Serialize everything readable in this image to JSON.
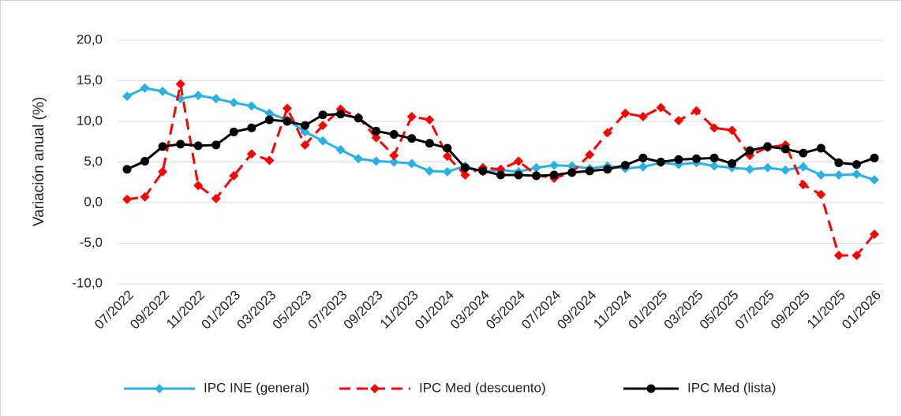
{
  "chart_data": {
    "type": "line",
    "y_label": "Variación anual (%)",
    "categories": [
      "07/2022",
      null,
      "09/2022",
      null,
      "11/2022",
      null,
      "01/2023",
      null,
      "03/2023",
      null,
      "05/2023",
      null,
      "07/2023",
      null,
      "09/2023",
      null,
      "11/2023",
      null,
      "01/2024",
      null,
      "03/2024",
      null,
      "05/2024",
      null,
      "07/2024",
      null,
      "09/2024",
      null,
      "11/2024",
      null,
      "01/2025",
      null,
      "03/2025",
      null,
      "05/2025",
      null,
      "07/2025",
      null,
      "09/2025",
      null,
      "11/2025",
      null,
      "01/2026"
    ],
    "series": [
      {
        "name": "IPC INE (general)",
        "color": "#29b1e6",
        "marker": "diamond",
        "dash": false,
        "values": [
          13.1,
          14.1,
          13.7,
          12.8,
          13.2,
          12.8,
          12.3,
          11.9,
          11.0,
          10.2,
          8.7,
          7.6,
          6.5,
          5.4,
          5.1,
          5.0,
          4.8,
          3.9,
          3.8,
          4.5,
          3.8,
          4.0,
          3.8,
          4.3,
          4.6,
          4.5,
          4.2,
          4.5,
          4.2,
          4.4,
          4.9,
          4.7,
          4.9,
          4.5,
          4.3,
          4.1,
          4.3,
          4.0,
          4.4,
          3.4,
          3.4,
          3.5,
          2.8
        ]
      },
      {
        "name": "IPC Med (descuento)",
        "color": "#ff0000",
        "marker": "diamond",
        "dash": true,
        "values": [
          0.4,
          0.7,
          3.8,
          14.6,
          2.1,
          0.5,
          3.3,
          6.0,
          5.2,
          11.6,
          7.1,
          9.5,
          11.5,
          10.5,
          8.0,
          5.8,
          10.6,
          10.2,
          5.7,
          3.4,
          4.3,
          4.1,
          5.1,
          3.4,
          3.0,
          3.7,
          5.9,
          8.6,
          11.0,
          10.6,
          11.7,
          10.1,
          11.3,
          9.2,
          8.9,
          5.8,
          6.8,
          7.1,
          2.2,
          1.0,
          -6.5,
          -6.5,
          -3.9
        ]
      },
      {
        "name": "IPC Med (lista)",
        "color": "#000000",
        "marker": "circle",
        "dash": false,
        "values": [
          4.1,
          5.1,
          6.9,
          7.2,
          7.0,
          7.1,
          8.7,
          9.2,
          10.2,
          10.0,
          9.5,
          10.8,
          10.9,
          10.4,
          8.8,
          8.4,
          7.9,
          7.3,
          6.7,
          4.3,
          3.9,
          3.4,
          3.4,
          3.3,
          3.4,
          3.7,
          3.9,
          4.1,
          4.6,
          5.5,
          5.0,
          5.3,
          5.4,
          5.5,
          4.8,
          6.4,
          6.9,
          6.6,
          6.1,
          6.7,
          4.9,
          4.7,
          5.5
        ]
      }
    ],
    "ylim": [
      -10,
      20
    ],
    "yticks": [
      {
        "value": -10,
        "label": "-10,0"
      },
      {
        "value": -5,
        "label": "-5,0"
      },
      {
        "value": 0,
        "label": "0,0"
      },
      {
        "value": 5,
        "label": "5,0"
      },
      {
        "value": 10,
        "label": "10,0"
      },
      {
        "value": 15,
        "label": "15,0"
      },
      {
        "value": 20,
        "label": "20,0"
      }
    ],
    "grid": true,
    "legend": "bottom"
  }
}
